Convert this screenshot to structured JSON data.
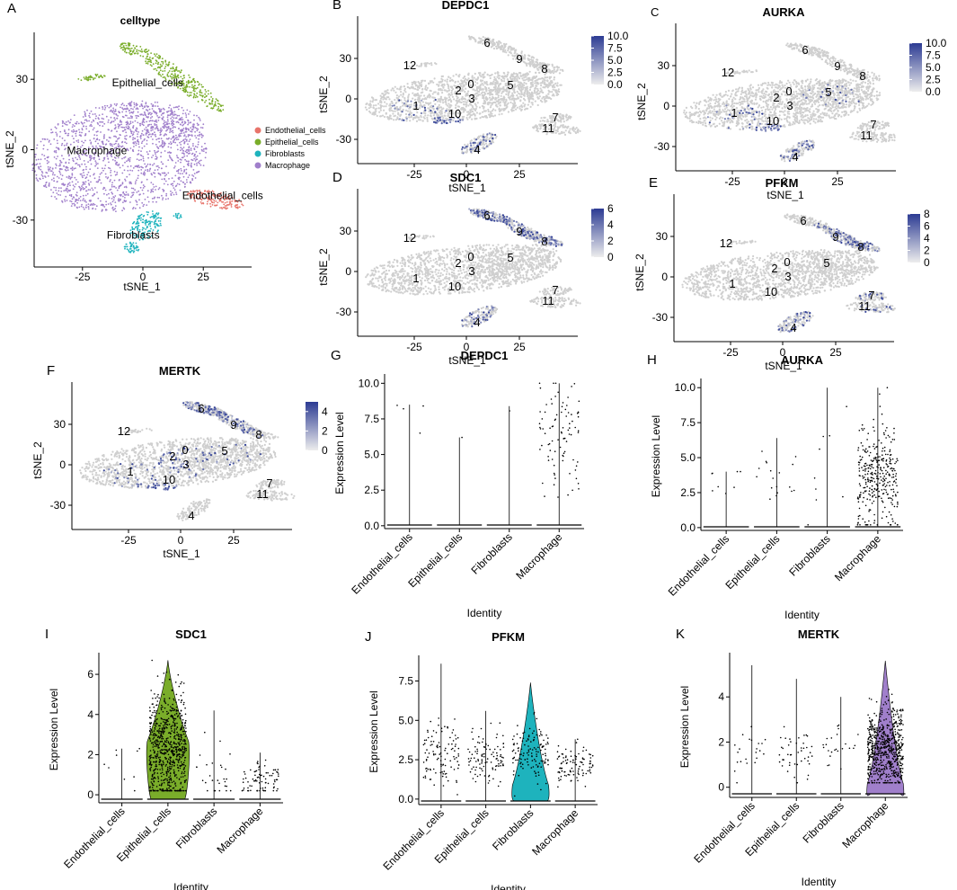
{
  "figure": {
    "colors": {
      "Endothelial_cells": "#e8746b",
      "Epithelial_cells": "#7aad2a",
      "Fibroblasts": "#1eb3bd",
      "Macrophage": "#a07fcb",
      "grey": "#cfcfcf",
      "expr_low": "#ededed",
      "expr_high": "#2c3b93"
    }
  },
  "chart_data": [
    {
      "id": "A",
      "type": "scatter",
      "title": "celltype",
      "xlabel": "tSNE_1",
      "ylabel": "tSNE_2",
      "xlim": [
        -45,
        45
      ],
      "ylim": [
        -50,
        50
      ],
      "xticks": [
        "-25",
        "0",
        "25"
      ],
      "xtick_values": [
        -25,
        0,
        25
      ],
      "yticks": [
        "-30",
        "0",
        "30"
      ],
      "ytick_values": [
        -30,
        0,
        30
      ],
      "legend": [
        "Endothelial_cells",
        "Epithelial_cells",
        "Fibroblasts",
        "Macrophage"
      ],
      "legend_position": "right",
      "cluster_labels": [
        {
          "text": "Epithelial_cells",
          "x": 2,
          "y": 27
        },
        {
          "text": "Macrophage",
          "x": -19,
          "y": -2
        },
        {
          "text": "Endothelial_cells",
          "x": 33,
          "y": -21
        },
        {
          "text": "Fibroblasts",
          "x": -4,
          "y": -38
        }
      ]
    },
    {
      "id": "B",
      "type": "scatter",
      "title": "DEPDC1",
      "gene": "DEPDC1",
      "panel_letter": "B",
      "xlabel": "tSNE_1",
      "ylabel": "tSNE_2",
      "xticks": [
        "-25",
        "0",
        "25"
      ],
      "yticks": [
        "-30",
        "0",
        "30"
      ],
      "colorbar_max": 10,
      "colorbar_ticks": [
        "0.0",
        "2.5",
        "5.0",
        "7.5",
        "10.0"
      ],
      "colorbar_tick_values": [
        0,
        2.5,
        5,
        7.5,
        10
      ],
      "expressing_clusters": [
        "10",
        "4",
        "1"
      ],
      "cluster_labels": [
        "12",
        "6",
        "9",
        "8",
        "2",
        "0",
        "3",
        "5",
        "1",
        "10",
        "7",
        "11",
        "4"
      ]
    },
    {
      "id": "C",
      "type": "scatter",
      "title": "AURKA",
      "gene": "AURKA",
      "panel_letter": "C",
      "xlabel": "tSNE_1",
      "ylabel": "tSNE_2",
      "xticks": [
        "-25",
        "0",
        "25"
      ],
      "yticks": [
        "-30",
        "0",
        "30"
      ],
      "colorbar_max": 10,
      "colorbar_ticks": [
        "0.0",
        "2.5",
        "5.0",
        "7.5",
        "10.0"
      ],
      "colorbar_tick_values": [
        0,
        2.5,
        5,
        7.5,
        10
      ],
      "expressing_clusters": [
        "10",
        "1",
        "5",
        "4"
      ],
      "cluster_labels": [
        "12",
        "6",
        "9",
        "8",
        "2",
        "0",
        "3",
        "5",
        "1",
        "10",
        "7",
        "11",
        "4"
      ]
    },
    {
      "id": "D",
      "type": "scatter",
      "title": "SDC1",
      "gene": "SDC1",
      "panel_letter": "D",
      "xlabel": "tSNE_1",
      "ylabel": "tSNE_2",
      "xticks": [
        "-25",
        "0",
        "25"
      ],
      "yticks": [
        "-30",
        "0",
        "30"
      ],
      "colorbar_max": 6,
      "colorbar_ticks": [
        "0",
        "2",
        "4",
        "6"
      ],
      "colorbar_tick_values": [
        0,
        2,
        4,
        6
      ],
      "expressing_clusters": [
        "6",
        "9",
        "8",
        "4"
      ],
      "cluster_labels": [
        "12",
        "6",
        "9",
        "8",
        "2",
        "0",
        "3",
        "5",
        "1",
        "10",
        "7",
        "11",
        "4"
      ]
    },
    {
      "id": "E",
      "type": "scatter",
      "title": "PFKM",
      "gene": "PFKM",
      "panel_letter": "E",
      "xlabel": "tSNE_1",
      "ylabel": "tSNE_2",
      "xticks": [
        "-25",
        "0",
        "25"
      ],
      "yticks": [
        "-30",
        "0",
        "30"
      ],
      "colorbar_max": 8,
      "colorbar_ticks": [
        "0",
        "2",
        "4",
        "6",
        "8"
      ],
      "colorbar_tick_values": [
        0,
        2,
        4,
        6,
        8
      ],
      "expressing_clusters": [
        "4",
        "9",
        "8",
        "7",
        "11"
      ],
      "cluster_labels": [
        "12",
        "6",
        "9",
        "8",
        "2",
        "0",
        "3",
        "5",
        "1",
        "10",
        "7",
        "11",
        "4"
      ]
    },
    {
      "id": "F",
      "type": "scatter",
      "title": "MERTK",
      "gene": "MERTK",
      "panel_letter": "F",
      "xlabel": "tSNE_1",
      "ylabel": "tSNE_2",
      "xticks": [
        "-25",
        "0",
        "25"
      ],
      "yticks": [
        "-30",
        "0",
        "30"
      ],
      "colorbar_max": 5,
      "colorbar_ticks": [
        "0",
        "2",
        "4"
      ],
      "colorbar_tick_values": [
        0,
        2,
        4
      ],
      "expressing_clusters": [
        "1",
        "10",
        "2",
        "0",
        "3",
        "5",
        "6",
        "9"
      ],
      "cluster_labels": [
        "12",
        "6",
        "9",
        "8",
        "2",
        "0",
        "3",
        "5",
        "1",
        "10",
        "7",
        "11",
        "4"
      ]
    },
    {
      "id": "G",
      "type": "violin",
      "title": "DEPDC1",
      "panel_letter": "G",
      "xlabel": "Identity",
      "ylabel": "Expression Level",
      "categories": [
        "Endothelial_cells",
        "Epithelial_cells",
        "Fibroblasts",
        "Macrophage"
      ],
      "ylim": [
        -0.2,
        10.4
      ],
      "yticks": [
        "0.0",
        "2.5",
        "5.0",
        "7.5",
        "10.0"
      ],
      "ytick_values": [
        0,
        2.5,
        5,
        7.5,
        10
      ],
      "max_values": [
        8.5,
        6.2,
        8.4,
        10.0
      ],
      "violin_fill": [
        false,
        false,
        false,
        false
      ],
      "bulk_center": [
        null,
        null,
        null,
        null
      ],
      "bulk_width": [
        0,
        0,
        0,
        0
      ],
      "scatter_center": [
        7.2,
        6.0,
        8.2,
        6.2
      ],
      "scatter_spread": [
        1.0,
        0.2,
        0.2,
        2.2
      ],
      "n_points": [
        4,
        1,
        1,
        90
      ]
    },
    {
      "id": "H",
      "type": "violin",
      "title": "AURKA",
      "panel_letter": "H",
      "xlabel": "Identity",
      "ylabel": "Expression Level",
      "categories": [
        "Endothelial_cells",
        "Epithelial_cells",
        "Fibroblasts",
        "Macrophage"
      ],
      "ylim": [
        -0.2,
        10.4
      ],
      "yticks": [
        "0.0",
        "2.5",
        "5.0",
        "7.5",
        "10.0"
      ],
      "ytick_values": [
        0,
        2.5,
        5,
        7.5,
        10
      ],
      "max_values": [
        4.0,
        6.4,
        10.0,
        10.0
      ],
      "violin_fill": [
        false,
        false,
        false,
        false
      ],
      "bulk_center": [
        null,
        null,
        null,
        null
      ],
      "bulk_width": [
        0,
        0,
        0,
        0
      ],
      "scatter_center": [
        3.3,
        3.5,
        4.5,
        3.6
      ],
      "scatter_spread": [
        0.6,
        1.2,
        2.0,
        1.8
      ],
      "n_points": [
        8,
        18,
        9,
        330
      ]
    },
    {
      "id": "I",
      "type": "violin",
      "title": "SDC1",
      "panel_letter": "I",
      "xlabel": "Identity",
      "ylabel": "Expression Level",
      "categories": [
        "Endothelial_cells",
        "Epithelial_cells",
        "Fibroblasts",
        "Macrophage"
      ],
      "ylim": [
        -0.4,
        6.9
      ],
      "yticks": [
        "0",
        "2",
        "4",
        "6"
      ],
      "ytick_values": [
        0,
        2,
        4,
        6
      ],
      "max_values": [
        2.3,
        6.7,
        4.2,
        2.1
      ],
      "violin_fill": [
        false,
        true,
        false,
        false
      ],
      "bulk_center": [
        null,
        2.2,
        null,
        null
      ],
      "bulk_width": [
        0,
        1.0,
        0,
        0
      ],
      "scatter_center": [
        1.1,
        2.3,
        1.1,
        0.8
      ],
      "scatter_spread": [
        0.6,
        1.4,
        0.7,
        0.4
      ],
      "n_points": [
        9,
        750,
        28,
        80
      ]
    },
    {
      "id": "J",
      "type": "violin",
      "title": "PFKM",
      "panel_letter": "J",
      "xlabel": "Identity",
      "ylabel": "Expression Level",
      "categories": [
        "Endothelial_cells",
        "Epithelial_cells",
        "Fibroblasts",
        "Macrophage"
      ],
      "ylim": [
        -0.35,
        8.9
      ],
      "yticks": [
        "0.0",
        "2.5",
        "5.0",
        "7.5"
      ],
      "ytick_values": [
        0,
        2.5,
        5,
        7.5
      ],
      "max_values": [
        8.6,
        5.6,
        7.4,
        3.8
      ],
      "violin_fill": [
        false,
        false,
        true,
        false
      ],
      "bulk_center": [
        null,
        null,
        0.3,
        null
      ],
      "bulk_width": [
        0,
        0,
        0.9,
        0
      ],
      "scatter_center": [
        2.8,
        2.6,
        3.0,
        2.1
      ],
      "scatter_spread": [
        0.9,
        0.8,
        1.0,
        0.6
      ],
      "n_points": [
        110,
        105,
        130,
        100
      ]
    },
    {
      "id": "K",
      "type": "violin",
      "title": "MERTK",
      "panel_letter": "K",
      "xlabel": "Identity",
      "ylabel": "Expression Level",
      "categories": [
        "Endothelial_cells",
        "Epithelial_cells",
        "Fibroblasts",
        "Macrophage"
      ],
      "ylim": [
        -0.45,
        5.8
      ],
      "yticks": [
        "0",
        "2",
        "4"
      ],
      "ytick_values": [
        0,
        2,
        4
      ],
      "max_values": [
        5.4,
        4.8,
        4.0,
        5.6
      ],
      "violin_fill": [
        false,
        false,
        false,
        true
      ],
      "bulk_center": [
        null,
        null,
        null,
        -0.3
      ],
      "bulk_width": [
        0,
        0,
        0,
        0.9
      ],
      "scatter_center": [
        1.5,
        1.5,
        1.7,
        1.7
      ],
      "scatter_spread": [
        0.6,
        0.6,
        0.6,
        0.9
      ],
      "n_points": [
        22,
        45,
        24,
        680
      ]
    }
  ]
}
